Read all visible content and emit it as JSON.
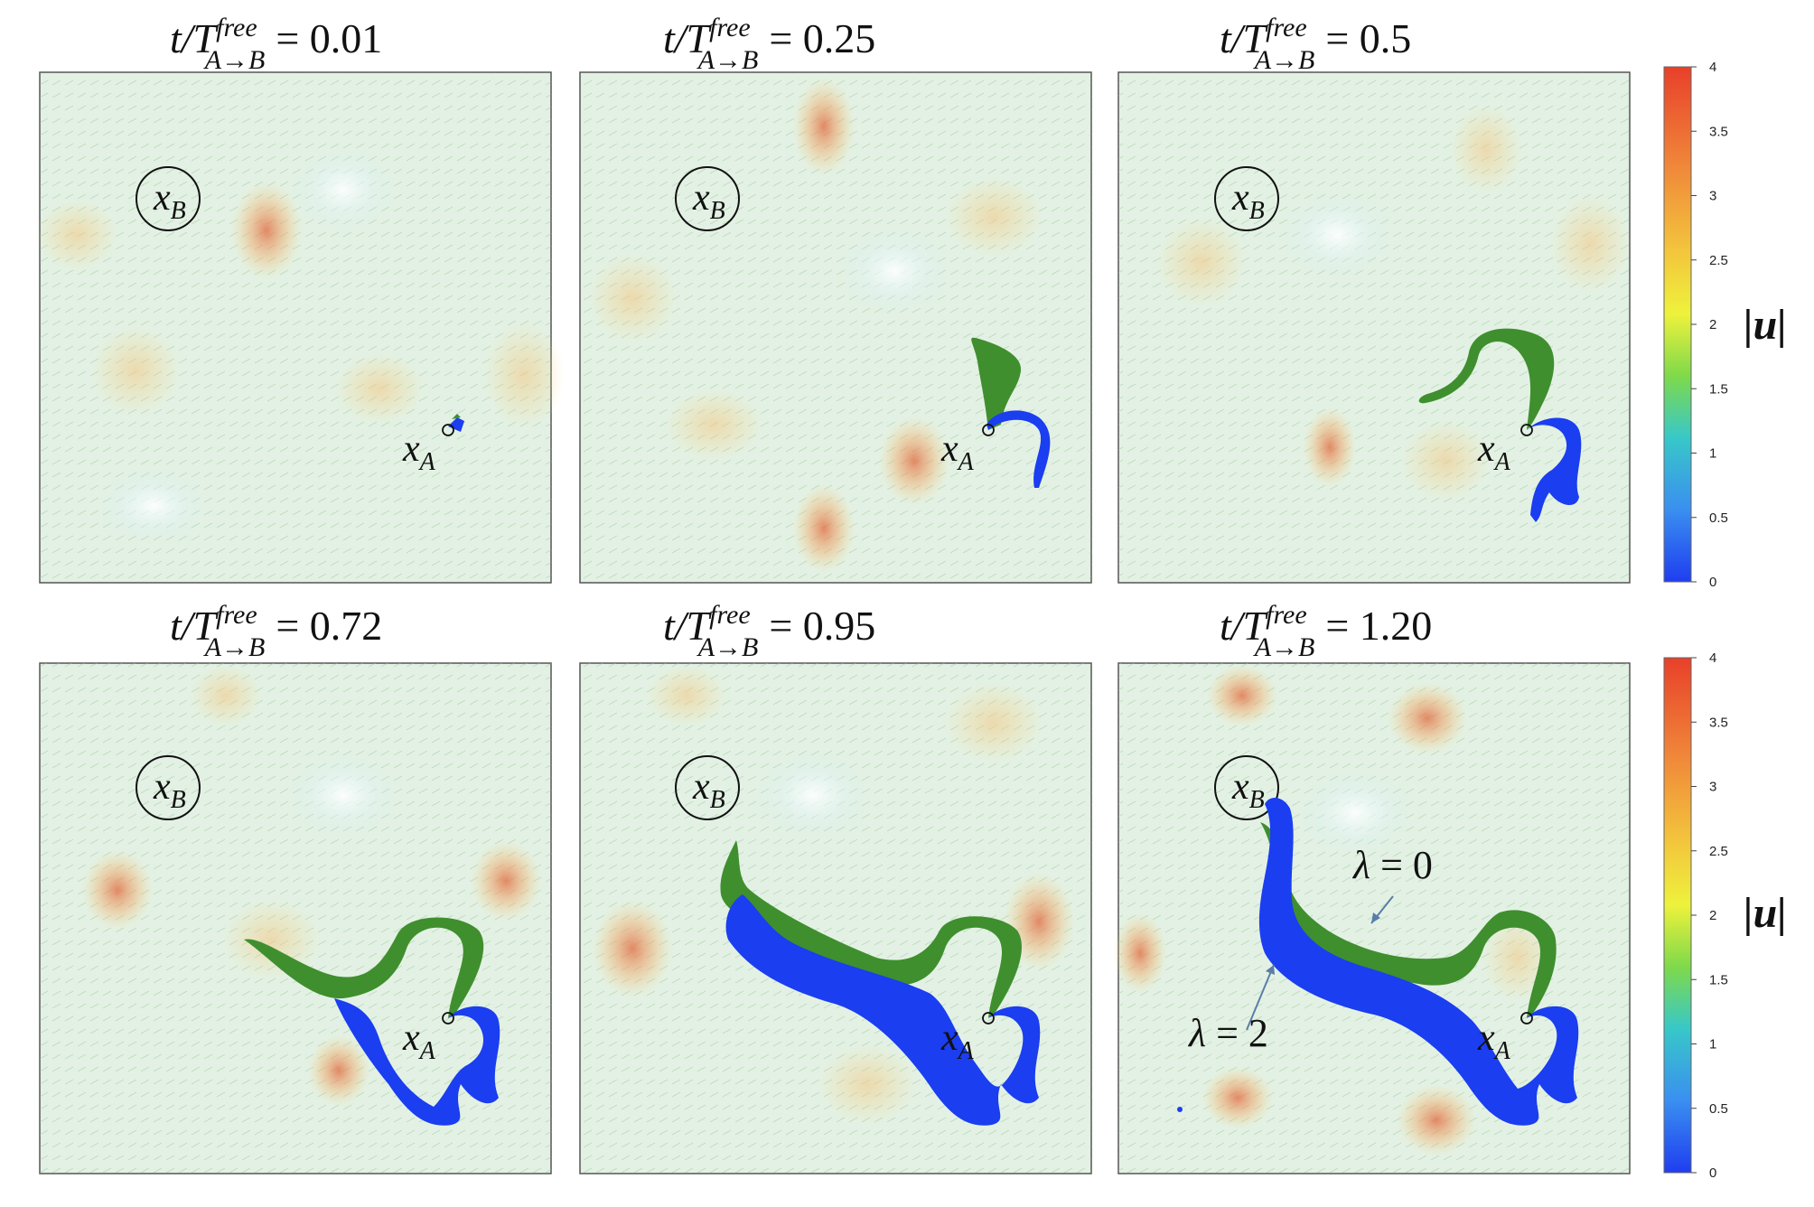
{
  "panels": [
    {
      "title_lhs": "t/T",
      "title_sup": "free",
      "title_sub": "A→B",
      "title_value": "= 0.01",
      "point_b": "x",
      "point_b_sub": "B",
      "point_a": "x",
      "point_a_sub": "A"
    },
    {
      "title_lhs": "t/T",
      "title_sup": "free",
      "title_sub": "A→B",
      "title_value": "= 0.25",
      "point_b": "x",
      "point_b_sub": "B",
      "point_a": "x",
      "point_a_sub": "A"
    },
    {
      "title_lhs": "t/T",
      "title_sup": "free",
      "title_sub": "A→B",
      "title_value": "= 0.5",
      "point_b": "x",
      "point_b_sub": "B",
      "point_a": "x",
      "point_a_sub": "A"
    },
    {
      "title_lhs": "t/T",
      "title_sup": "free",
      "title_sub": "A→B",
      "title_value": "= 0.72",
      "point_b": "x",
      "point_b_sub": "B",
      "point_a": "x",
      "point_a_sub": "A"
    },
    {
      "title_lhs": "t/T",
      "title_sup": "free",
      "title_sub": "A→B",
      "title_value": "= 0.95",
      "point_b": "x",
      "point_b_sub": "B",
      "point_a": "x",
      "point_a_sub": "A"
    },
    {
      "title_lhs": "t/T",
      "title_sup": "free",
      "title_sub": "A→B",
      "title_value": "= 1.20",
      "point_b": "x",
      "point_b_sub": "B",
      "point_a": "x",
      "point_a_sub": "A"
    }
  ],
  "colorbar": {
    "label": "|u|",
    "ticks": [
      "4",
      "3.5",
      "3",
      "2.5",
      "2",
      "1.5",
      "1",
      "0.5",
      "0"
    ],
    "colors": [
      "#e8402a",
      "#f08a3a",
      "#f3c63c",
      "#eef23c",
      "#7fd94a",
      "#38c8c8",
      "#3a8ff0",
      "#1f3df0"
    ]
  },
  "annotations": {
    "lambda0_symbol": "λ",
    "lambda0_value": " = 0",
    "lambda2_symbol": "λ",
    "lambda2_value": " = 2"
  },
  "colors": {
    "green_path": "#3f8f2e",
    "blue_path": "#1a3ef0",
    "field_red": "#e0663a",
    "field_yellow": "#f2d98a",
    "field_green": "#bfe3b0",
    "field_cyan": "#cdeef2"
  }
}
